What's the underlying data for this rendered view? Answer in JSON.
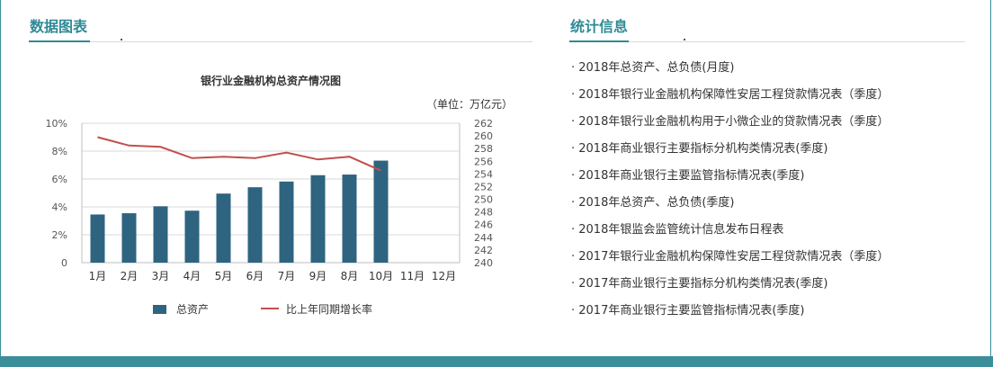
{
  "left_panel": {
    "title": "数据图表"
  },
  "right_panel": {
    "title": "统计信息",
    "items": [
      "· 2018年总资产、总负债(月度)",
      "· 2018年银行业金融机构保障性安居工程贷款情况表（季度）",
      "· 2018年银行业金融机构用于小微企业的贷款情况表（季度）",
      "· 2018年商业银行主要指标分机构类情况表(季度)",
      "· 2018年商业银行主要监管指标情况表(季度)",
      "· 2018年总资产、总负债(季度)",
      "· 2018年银监会监管统计信息发布日程表",
      "· 2017年银行业金融机构保障性安居工程贷款情况表（季度）",
      "· 2017年商业银行主要指标分机构类情况表(季度)",
      "· 2017年商业银行主要监管指标情况表(季度)"
    ]
  },
  "chart_data": {
    "type": "bar",
    "title": "银行业金融机构总资产情况图",
    "unit_note": "（单位：万亿元）",
    "categories": [
      "1月",
      "2月",
      "3月",
      "4月",
      "5月",
      "6月",
      "7月",
      "9月",
      "8月",
      "10月",
      "11月",
      "12月"
    ],
    "series": [
      {
        "name": "总资产",
        "type": "bar",
        "axis": "right",
        "color": "#2e6480",
        "values": [
          247.6,
          247.8,
          248.9,
          248.2,
          250.9,
          251.9,
          252.8,
          253.8,
          253.9,
          256.1,
          null,
          null
        ]
      },
      {
        "name": "比上年同期增长率",
        "type": "line",
        "axis": "left",
        "color": "#c0504d",
        "values": [
          9.0,
          8.4,
          8.3,
          7.5,
          7.6,
          7.5,
          7.9,
          7.4,
          7.6,
          6.6,
          null,
          null
        ]
      }
    ],
    "left_axis": {
      "ticks": [
        "0",
        "2%",
        "4%",
        "6%",
        "8%",
        "10%"
      ],
      "ylim": [
        0,
        10
      ]
    },
    "right_axis": {
      "ticks": [
        "240",
        "242",
        "244",
        "246",
        "248",
        "250",
        "252",
        "254",
        "256",
        "258",
        "260",
        "262"
      ],
      "ylim": [
        240,
        262
      ]
    },
    "grid": true,
    "legend_position": "bottom"
  }
}
